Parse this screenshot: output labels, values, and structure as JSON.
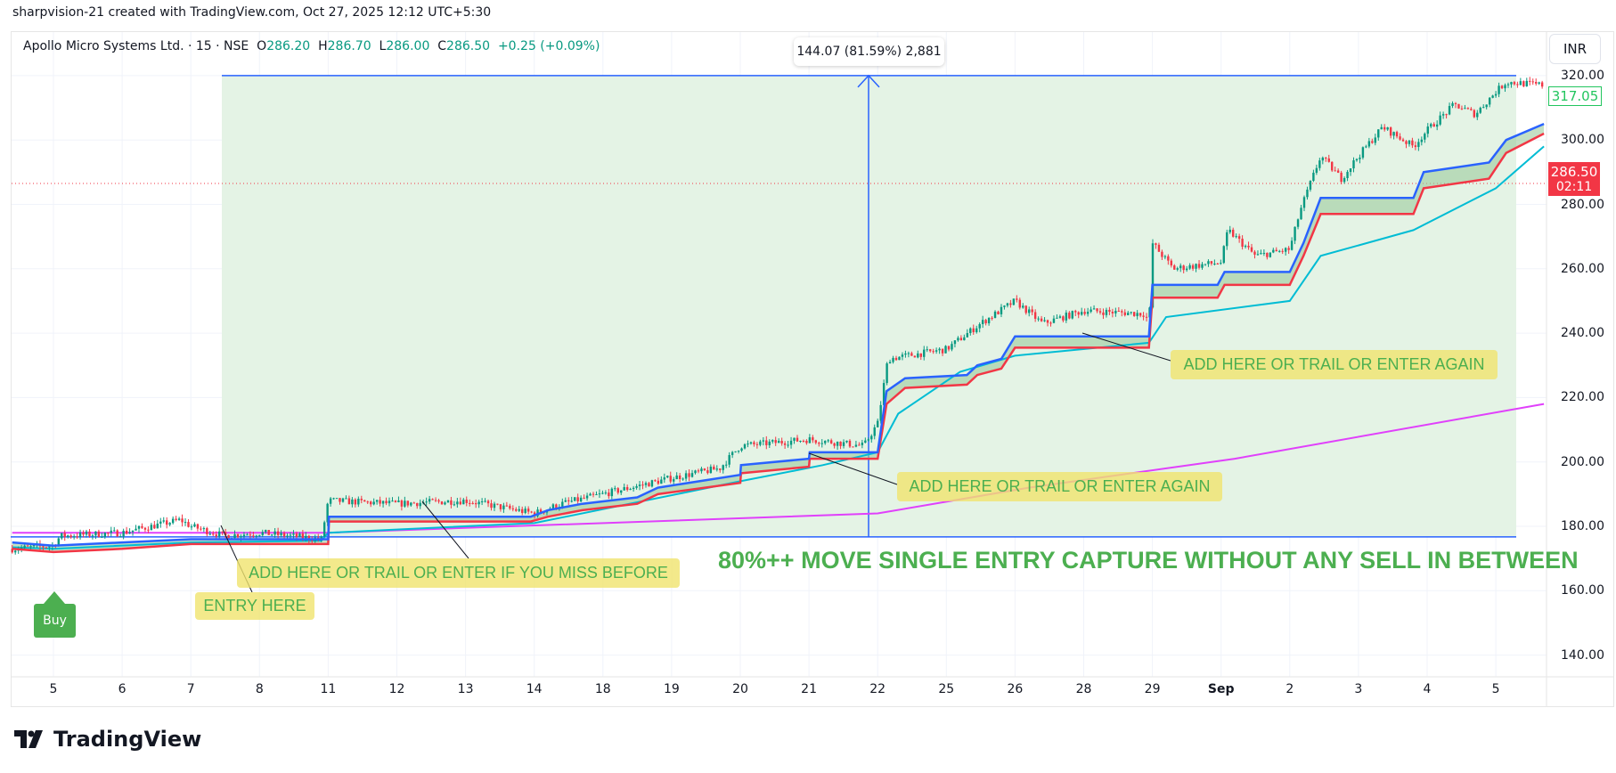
{
  "header": {
    "attribution": "sharpvision-21 created with TradingView.com, Oct 27, 2025 12:12 UTC+5:30"
  },
  "legend": {
    "symbol": "Apollo Micro Systems Ltd. · 15 · NSE",
    "o_label": "O",
    "o": "286.20",
    "h_label": "H",
    "h": "286.70",
    "l_label": "L",
    "l": "286.00",
    "c_label": "C",
    "c": "286.50",
    "change": "+0.25 (+0.09%)"
  },
  "currency_button": "INR",
  "measure_label": "144.07 (81.59%) 2,881",
  "price_labels": {
    "high_mark": "317.05",
    "last": "286.50",
    "countdown": "02:11"
  },
  "buy_marker": "Buy",
  "annotations": {
    "a1": "ADD HERE OR TRAIL OR ENTER AGAIN",
    "a2": "ADD HERE OR TRAIL OR ENTER AGAIN",
    "a3": "ADD HERE OR TRAIL OR ENTER IF YOU MISS BEFORE",
    "a4": "ENTRY HERE",
    "headline": "80%++ MOVE SINGLE ENTRY CAPTURE WITHOUT ANY SELL IN BETWEEN"
  },
  "brand": "TradingView",
  "colors": {
    "up": "#089981",
    "down": "#f23645",
    "blue": "#2962ff",
    "red": "#f23645",
    "cyan": "#00bcd4",
    "magenta": "#e040fb",
    "range_fill": "#e3f2e4"
  },
  "chart_data": {
    "type": "candlestick",
    "title": "Apollo Micro Systems Ltd. · 15 · NSE",
    "x_ticks": [
      "5",
      "6",
      "7",
      "8",
      "11",
      "12",
      "13",
      "14",
      "18",
      "19",
      "20",
      "21",
      "22",
      "25",
      "26",
      "28",
      "29",
      "Sep",
      "2",
      "3",
      "4",
      "5"
    ],
    "y_ticks": [
      "140.00",
      "160.00",
      "180.00",
      "200.00",
      "220.00",
      "240.00",
      "260.00",
      "280.00",
      "300.00",
      "320.00"
    ],
    "ylim": [
      130,
      330
    ],
    "price_path": [
      [
        -0.6,
        173
      ],
      [
        0,
        174
      ],
      [
        0.1,
        177
      ],
      [
        1,
        178
      ],
      [
        1.85,
        182
      ],
      [
        2,
        180
      ],
      [
        2.5,
        177
      ],
      [
        3,
        178
      ],
      [
        3.9,
        176
      ],
      [
        4,
        188
      ],
      [
        5,
        187
      ],
      [
        6,
        188
      ],
      [
        7,
        184
      ],
      [
        7.4,
        187
      ],
      [
        8,
        190
      ],
      [
        9,
        195
      ],
      [
        9.7,
        198
      ],
      [
        10,
        205
      ],
      [
        11,
        207
      ],
      [
        11.8,
        205
      ],
      [
        12,
        212
      ],
      [
        12.15,
        232
      ],
      [
        13,
        235
      ],
      [
        13.5,
        243
      ],
      [
        14,
        250
      ],
      [
        14.4,
        243
      ],
      [
        15,
        247
      ],
      [
        15.9,
        246
      ],
      [
        15.95,
        242
      ],
      [
        16,
        268
      ],
      [
        16.3,
        260
      ],
      [
        17,
        262
      ],
      [
        17.1,
        272
      ],
      [
        17.5,
        264
      ],
      [
        18,
        266
      ],
      [
        18.15,
        278
      ],
      [
        18.45,
        295
      ],
      [
        18.75,
        288
      ],
      [
        19,
        295
      ],
      [
        19.35,
        304
      ],
      [
        19.8,
        298
      ],
      [
        20,
        303
      ],
      [
        20.4,
        311
      ],
      [
        20.7,
        308
      ],
      [
        21,
        315
      ],
      [
        21.15,
        318
      ],
      [
        21.7,
        317
      ]
    ],
    "series": [
      {
        "name": "Upper trailing line (blue)",
        "points": [
          [
            -0.6,
            175
          ],
          [
            0,
            174
          ],
          [
            1,
            175
          ],
          [
            2,
            176
          ],
          [
            4,
            176
          ],
          [
            4.01,
            183
          ],
          [
            6.95,
            183
          ],
          [
            7.2,
            185
          ],
          [
            7.7,
            187
          ],
          [
            8.5,
            189
          ],
          [
            8.8,
            192
          ],
          [
            10,
            196
          ],
          [
            10.01,
            199
          ],
          [
            11,
            201
          ],
          [
            11.01,
            203
          ],
          [
            12,
            203
          ],
          [
            12.13,
            222
          ],
          [
            12.4,
            226
          ],
          [
            13.3,
            227
          ],
          [
            13.45,
            230
          ],
          [
            13.8,
            232
          ],
          [
            14,
            239
          ],
          [
            15.95,
            239
          ],
          [
            16,
            255
          ],
          [
            16.95,
            255
          ],
          [
            17.05,
            259
          ],
          [
            18,
            259
          ],
          [
            18.2,
            268
          ],
          [
            18.45,
            282
          ],
          [
            19.8,
            282
          ],
          [
            19.95,
            290
          ],
          [
            20.9,
            293
          ],
          [
            21.15,
            300
          ],
          [
            21.7,
            305
          ]
        ]
      },
      {
        "name": "Lower trailing line (red)",
        "points": [
          [
            -0.6,
            173
          ],
          [
            0,
            172
          ],
          [
            1,
            173
          ],
          [
            2,
            174.5
          ],
          [
            4,
            174.5
          ],
          [
            4.01,
            181.5
          ],
          [
            6.95,
            181.5
          ],
          [
            7.2,
            183
          ],
          [
            7.7,
            185
          ],
          [
            8.5,
            187
          ],
          [
            8.8,
            190
          ],
          [
            10,
            193.5
          ],
          [
            10.01,
            196.5
          ],
          [
            11,
            198.5
          ],
          [
            11.01,
            201
          ],
          [
            12,
            201
          ],
          [
            12.13,
            218
          ],
          [
            12.4,
            223
          ],
          [
            13.3,
            224
          ],
          [
            13.45,
            227
          ],
          [
            13.8,
            229
          ],
          [
            14,
            235.5
          ],
          [
            15.95,
            235.5
          ],
          [
            16,
            251
          ],
          [
            16.95,
            251
          ],
          [
            17.05,
            255
          ],
          [
            18,
            255
          ],
          [
            18.2,
            264
          ],
          [
            18.45,
            277
          ],
          [
            19.8,
            277
          ],
          [
            19.95,
            285
          ],
          [
            20.9,
            288
          ],
          [
            21.15,
            296
          ],
          [
            21.7,
            302
          ]
        ]
      },
      {
        "name": "Cyan trend line",
        "points": [
          [
            -0.6,
            173.5
          ],
          [
            0,
            173
          ],
          [
            2,
            175
          ],
          [
            3.9,
            175.5
          ],
          [
            4,
            178
          ],
          [
            7,
            181
          ],
          [
            10,
            194
          ],
          [
            11.2,
            199
          ],
          [
            12,
            203
          ],
          [
            12.3,
            215
          ],
          [
            13.2,
            228
          ],
          [
            14,
            233
          ],
          [
            15.95,
            237
          ],
          [
            16.2,
            245
          ],
          [
            18,
            250
          ],
          [
            18.45,
            264
          ],
          [
            19.8,
            272
          ],
          [
            21,
            285
          ],
          [
            21.7,
            298
          ]
        ]
      },
      {
        "name": "Moving average (magenta)",
        "points": [
          [
            -0.6,
            178
          ],
          [
            4,
            178
          ],
          [
            12,
            184
          ],
          [
            14.2,
            192
          ],
          [
            17.2,
            201
          ],
          [
            21.7,
            218
          ]
        ]
      }
    ],
    "range_measurement": {
      "from_price": 176.7,
      "to_price": 320.0,
      "change": "144.07",
      "percent": "81.59%",
      "bars": "2,881"
    },
    "last_price_line": 286.5
  }
}
